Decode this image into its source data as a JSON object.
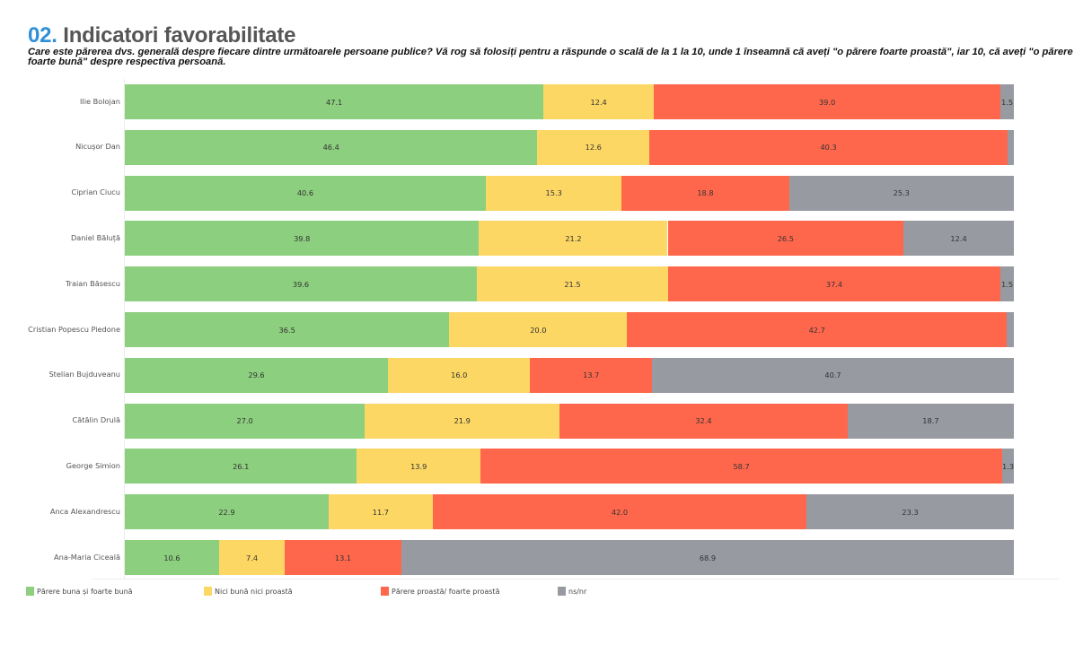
{
  "header": {
    "number": "02.",
    "title": "Indicatori favorabilitate",
    "question": "Care este părerea dvs. generală despre fiecare dintre următoarele persoane publice? Vă rog să folosiți pentru a răspunde o scală de la 1 la 10, unde 1 înseamnă că aveți \"o părere foarte proastă\", iar 10, că aveți \"o părere foarte bună\" despre respectiva persoană."
  },
  "colors": {
    "good": "#8ccf7e",
    "neutral": "#fdd764",
    "bad": "#ff674c",
    "dk": "#979aa0",
    "title_accent": "#2f8fd8"
  },
  "chart_data": {
    "type": "bar",
    "orientation": "horizontal",
    "stacked": true,
    "normalized_to": 100,
    "title": "Indicatori favorabilitate",
    "xlabel": "",
    "ylabel": "",
    "xlim": [
      0,
      100
    ],
    "grid": false,
    "legend_position": "bottom",
    "categories": [
      "Ilie Bolojan",
      "Nicușor Dan",
      "Ciprian Ciucu",
      "Daniel Băluță",
      "Traian Băsescu",
      "Cristian Popescu Piedone",
      "Stelian Bujduveanu",
      "Cătălin Drulă",
      "George Simion",
      "Anca Alexandrescu",
      "Ana-Maria Ciceală"
    ],
    "series": [
      {
        "key": "good",
        "name": "Părere buna și foarte bună",
        "values": [
          47.1,
          46.4,
          40.6,
          39.8,
          39.6,
          36.5,
          29.6,
          27.0,
          26.1,
          22.9,
          10.6
        ],
        "labeled": [
          true,
          true,
          true,
          true,
          true,
          true,
          true,
          true,
          true,
          true,
          true
        ]
      },
      {
        "key": "neutral",
        "name": "Nici bună nici proastă",
        "values": [
          12.4,
          12.6,
          15.3,
          21.2,
          21.5,
          20.0,
          16.0,
          21.9,
          13.9,
          11.7,
          7.4
        ],
        "labeled": [
          true,
          true,
          true,
          true,
          true,
          true,
          true,
          true,
          true,
          true,
          true
        ]
      },
      {
        "key": "bad",
        "name": "Părere proastă/ foarte proastă",
        "values": [
          39.0,
          40.3,
          18.8,
          26.5,
          37.4,
          42.7,
          13.7,
          32.4,
          58.7,
          42.0,
          13.1
        ],
        "labeled": [
          true,
          true,
          true,
          true,
          true,
          true,
          true,
          true,
          true,
          true,
          true
        ]
      },
      {
        "key": "dk",
        "name": "ns/nr",
        "values": [
          1.5,
          0.7,
          25.3,
          12.4,
          1.5,
          0.8,
          40.7,
          18.7,
          1.3,
          23.3,
          68.9
        ],
        "labeled": [
          true,
          false,
          true,
          true,
          true,
          false,
          true,
          true,
          true,
          true,
          true
        ]
      }
    ]
  }
}
